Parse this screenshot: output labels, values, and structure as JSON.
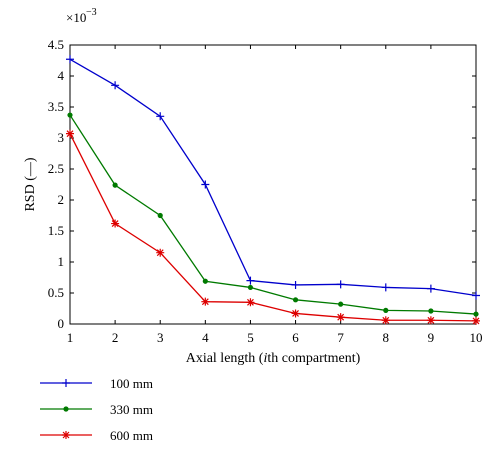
{
  "chart_data": {
    "type": "line",
    "title": "",
    "xlabel": "Axial length (",
    "xlabel_italic": "i",
    "xlabel_rest": "th compartment)",
    "ylabel": "RSD (—)",
    "y_multiplier": "×10",
    "y_exponent": "−3",
    "xlim": [
      1,
      10
    ],
    "ylim": [
      0,
      4.5
    ],
    "x_ticks": [
      1,
      2,
      3,
      4,
      5,
      6,
      7,
      8,
      9,
      10
    ],
    "y_ticks": [
      0,
      0.5,
      1,
      1.5,
      2,
      2.5,
      3,
      3.5,
      4,
      4.5
    ],
    "y_tick_labels": [
      "0",
      "0.5",
      "1",
      "1.5",
      "2",
      "2.5",
      "3",
      "3.5",
      "4",
      "4.5"
    ],
    "grid": false,
    "legend_position": "below-left",
    "x": [
      1,
      2,
      3,
      4,
      5,
      6,
      7,
      8,
      9,
      10
    ],
    "series": [
      {
        "name": "100 mm",
        "color": "#0000cc",
        "marker": "plus",
        "values": [
          4.27,
          3.85,
          3.35,
          2.25,
          0.7,
          0.63,
          0.64,
          0.59,
          0.57,
          0.46
        ]
      },
      {
        "name": "330 mm",
        "color": "#007a00",
        "marker": "dot",
        "values": [
          3.37,
          2.24,
          1.75,
          0.69,
          0.59,
          0.39,
          0.32,
          0.22,
          0.21,
          0.16
        ]
      },
      {
        "name": "600 mm",
        "color": "#dd0000",
        "marker": "star",
        "values": [
          3.07,
          1.62,
          1.15,
          0.36,
          0.35,
          0.17,
          0.11,
          0.06,
          0.06,
          0.05
        ]
      }
    ]
  }
}
